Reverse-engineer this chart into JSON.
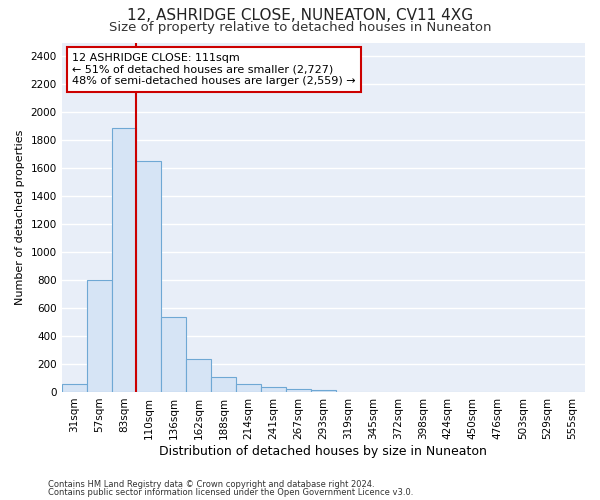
{
  "title": "12, ASHRIDGE CLOSE, NUNEATON, CV11 4XG",
  "subtitle": "Size of property relative to detached houses in Nuneaton",
  "xlabel": "Distribution of detached houses by size in Nuneaton",
  "ylabel": "Number of detached properties",
  "categories": [
    "31sqm",
    "57sqm",
    "83sqm",
    "110sqm",
    "136sqm",
    "162sqm",
    "188sqm",
    "214sqm",
    "241sqm",
    "267sqm",
    "293sqm",
    "319sqm",
    "345sqm",
    "372sqm",
    "398sqm",
    "424sqm",
    "450sqm",
    "476sqm",
    "503sqm",
    "529sqm",
    "555sqm"
  ],
  "values": [
    55,
    800,
    1890,
    1650,
    535,
    238,
    110,
    57,
    38,
    20,
    12,
    0,
    0,
    0,
    0,
    0,
    0,
    0,
    0,
    0,
    0
  ],
  "bar_color": "#d6e4f5",
  "bar_edge_color": "#6fa8d4",
  "property_line_color": "#cc0000",
  "annotation_text": "12 ASHRIDGE CLOSE: 111sqm\n← 51% of detached houses are smaller (2,727)\n48% of semi-detached houses are larger (2,559) →",
  "annotation_box_edge_color": "#cc0000",
  "ylim": [
    0,
    2500
  ],
  "yticks": [
    0,
    200,
    400,
    600,
    800,
    1000,
    1200,
    1400,
    1600,
    1800,
    2000,
    2200,
    2400
  ],
  "footer_line1": "Contains HM Land Registry data © Crown copyright and database right 2024.",
  "footer_line2": "Contains public sector information licensed under the Open Government Licence v3.0.",
  "plot_bg_color": "#e8eef8",
  "fig_bg_color": "#ffffff",
  "grid_color": "#ffffff",
  "title_fontsize": 11,
  "subtitle_fontsize": 9.5,
  "xlabel_fontsize": 9,
  "ylabel_fontsize": 8,
  "tick_fontsize": 7.5,
  "annotation_fontsize": 8,
  "footer_fontsize": 6
}
